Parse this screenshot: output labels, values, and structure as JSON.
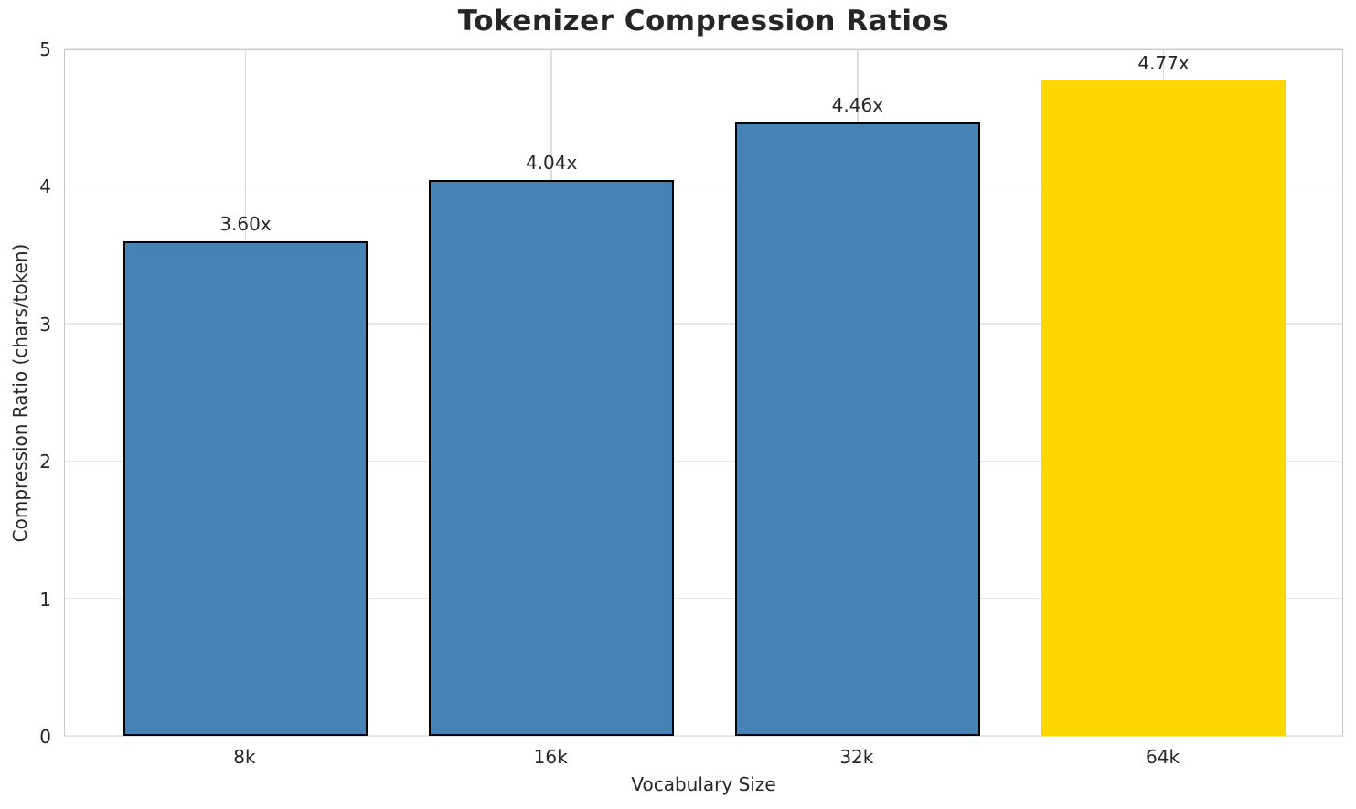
{
  "chart_data": {
    "type": "bar",
    "title": "Tokenizer Compression Ratios",
    "xlabel": "Vocabulary Size",
    "ylabel": "Compression Ratio (chars/token)",
    "categories": [
      "8k",
      "16k",
      "32k",
      "64k"
    ],
    "values": [
      3.6,
      4.04,
      4.46,
      4.77
    ],
    "bar_labels": [
      "3.60x",
      "4.04x",
      "4.46x",
      "4.77x"
    ],
    "bar_colors": [
      "#4682B4",
      "#4682B4",
      "#4682B4",
      "#FFD700"
    ],
    "bar_edge_colors": [
      "#000000",
      "#000000",
      "#000000",
      "none"
    ],
    "yticks": [
      "0",
      "1",
      "2",
      "3",
      "4",
      "5"
    ],
    "ylim": [
      0,
      5
    ],
    "xlim_units": [
      -0.59,
      3.59
    ],
    "bar_width_units": 0.8,
    "grid": true,
    "legend": "none",
    "colors": {
      "primary_bar": "#4682B4",
      "highlight_bar": "#FFD700",
      "bar_edge": "#000000",
      "grid_line": "#e7e7e7",
      "spine": "#c9c9c9",
      "text": "#262626",
      "background": "#ffffff"
    }
  }
}
